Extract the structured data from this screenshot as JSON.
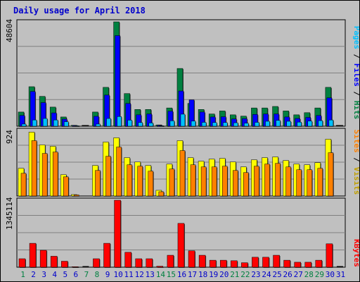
{
  "title": "Daily usage for April 2018",
  "colors": {
    "hits": "#008040",
    "files": "#0000ff",
    "pages": "#00c0ff",
    "visits": "#ffff00",
    "sites": "#ff8000",
    "kbytes": "#ff0000",
    "axis_text_weekday": "#0000cc",
    "axis_text_weekend": "#008040"
  },
  "chart_data": [
    {
      "type": "bar",
      "panel": "hits-files-pages",
      "y_max_label": "48604",
      "ylim": [
        0,
        48604
      ],
      "grid": true,
      "legend": [
        "Pages",
        "Files",
        "Hits"
      ],
      "x": [
        1,
        2,
        3,
        4,
        5,
        6,
        7,
        8,
        9,
        10,
        11,
        12,
        13,
        14,
        15,
        16,
        17,
        18,
        19,
        20,
        21,
        22,
        23,
        24,
        25,
        26,
        27,
        28,
        29,
        30,
        31
      ],
      "series": [
        {
          "name": "Hits",
          "values": [
            6600,
            18400,
            13900,
            8900,
            4300,
            400,
            0,
            6600,
            18100,
            48604,
            15200,
            7800,
            7800,
            600,
            8500,
            26900,
            10600,
            7800,
            5700,
            7100,
            5300,
            4700,
            8500,
            8500,
            9200,
            7100,
            5300,
            6300,
            8500,
            18100,
            0
          ]
        },
        {
          "name": "Files",
          "values": [
            5000,
            16200,
            11000,
            6200,
            3300,
            300,
            0,
            4600,
            14500,
            42200,
            10600,
            5300,
            5700,
            400,
            7000,
            16400,
            12300,
            6600,
            4300,
            4400,
            3400,
            3500,
            5500,
            5700,
            5700,
            4300,
            3600,
            4100,
            5000,
            13200,
            0
          ]
        },
        {
          "name": "Pages",
          "values": [
            1000,
            2900,
            3600,
            2900,
            2100,
            200,
            0,
            1000,
            3600,
            4500,
            2800,
            1700,
            1500,
            200,
            2500,
            5600,
            2400,
            1800,
            1700,
            1700,
            1600,
            1400,
            1800,
            2300,
            2700,
            2300,
            1900,
            2400,
            2600,
            2900,
            0
          ]
        }
      ]
    },
    {
      "type": "bar",
      "panel": "visits-sites",
      "y_max_label": "924",
      "ylim": [
        0,
        924
      ],
      "grid": true,
      "legend": [
        "Sites",
        "Visits"
      ],
      "x": [
        1,
        2,
        3,
        4,
        5,
        6,
        7,
        8,
        9,
        10,
        11,
        12,
        13,
        14,
        15,
        16,
        17,
        18,
        19,
        20,
        21,
        22,
        23,
        24,
        25,
        26,
        27,
        28,
        29,
        30,
        31
      ],
      "series": [
        {
          "name": "Visits",
          "values": [
            390,
            900,
            720,
            700,
            300,
            20,
            0,
            430,
            760,
            820,
            540,
            480,
            430,
            80,
            450,
            780,
            540,
            490,
            520,
            530,
            480,
            410,
            510,
            540,
            550,
            500,
            450,
            440,
            470,
            800,
            0
          ]
        },
        {
          "name": "Sites",
          "values": [
            320,
            780,
            600,
            620,
            270,
            15,
            0,
            360,
            560,
            690,
            440,
            420,
            350,
            60,
            380,
            640,
            440,
            410,
            410,
            420,
            360,
            330,
            420,
            450,
            460,
            410,
            370,
            370,
            390,
            610,
            0
          ]
        }
      ]
    },
    {
      "type": "bar",
      "panel": "kbytes",
      "y_max_label": "1345114",
      "ylim": [
        0,
        1345114
      ],
      "grid": true,
      "legend": [
        "KBytes"
      ],
      "x": [
        1,
        2,
        3,
        4,
        5,
        6,
        7,
        8,
        9,
        10,
        11,
        12,
        13,
        14,
        15,
        16,
        17,
        18,
        19,
        20,
        21,
        22,
        23,
        24,
        25,
        26,
        27,
        28,
        29,
        30,
        31
      ],
      "series": [
        {
          "name": "KBytes",
          "values": [
            170000,
            480000,
            340000,
            220000,
            120000,
            10000,
            0,
            170000,
            480000,
            1345114,
            300000,
            170000,
            170000,
            20000,
            240000,
            880000,
            330000,
            240000,
            140000,
            140000,
            130000,
            90000,
            200000,
            200000,
            240000,
            140000,
            100000,
            100000,
            140000,
            470000,
            0
          ]
        }
      ]
    }
  ],
  "x_labels": [
    "1",
    "2",
    "3",
    "4",
    "5",
    "6",
    "7",
    "8",
    "9",
    "10",
    "11",
    "12",
    "13",
    "14",
    "15",
    "16",
    "17",
    "18",
    "19",
    "20",
    "21",
    "22",
    "23",
    "24",
    "25",
    "26",
    "27",
    "28",
    "29",
    "30",
    "31"
  ],
  "weekend_days": [
    1,
    7,
    8,
    14,
    15,
    21,
    22,
    28,
    29
  ]
}
